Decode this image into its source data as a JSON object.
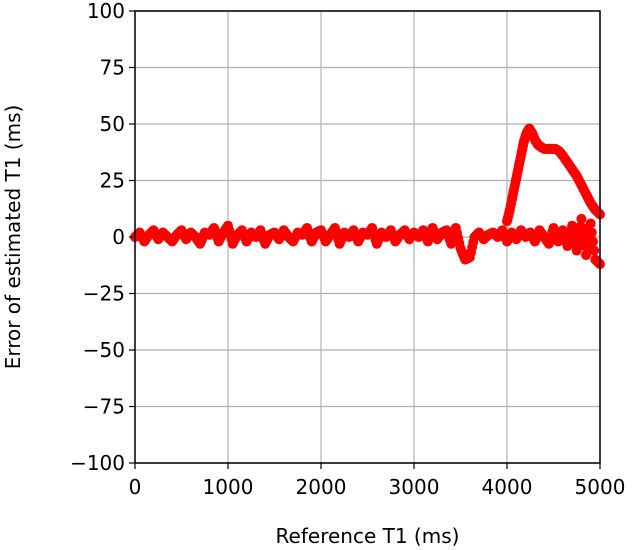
{
  "chart_data": {
    "type": "scatter",
    "title": "",
    "xlabel": "Reference T1 (ms)",
    "ylabel": "Error of estimated T1 (ms)",
    "xlim": [
      0,
      5000
    ],
    "ylim": [
      -100,
      100
    ],
    "xticks": [
      0,
      1000,
      2000,
      3000,
      4000,
      5000
    ],
    "xtick_labels": [
      "0",
      "1000",
      "2000",
      "3000",
      "4000",
      "5000"
    ],
    "yticks": [
      100,
      75,
      50,
      25,
      0,
      -25,
      -50,
      -75,
      -100
    ],
    "ytick_labels": [
      "100",
      "75",
      "50",
      "25",
      "0",
      "−25",
      "−50",
      "−75",
      "−100"
    ],
    "grid": true,
    "marker_color": "#ff0000",
    "series": [
      {
        "points": [
          [
            0,
            0
          ],
          [
            50,
            2
          ],
          [
            100,
            -2
          ],
          [
            150,
            1
          ],
          [
            200,
            3
          ],
          [
            250,
            -1
          ],
          [
            300,
            2
          ],
          [
            350,
            0
          ],
          [
            400,
            -2
          ],
          [
            450,
            1
          ],
          [
            500,
            3
          ],
          [
            550,
            -1
          ],
          [
            600,
            2
          ],
          [
            650,
            0
          ],
          [
            700,
            -3
          ],
          [
            750,
            2
          ],
          [
            800,
            1
          ],
          [
            850,
            4
          ],
          [
            900,
            -2
          ],
          [
            950,
            2
          ],
          [
            1000,
            5
          ],
          [
            1050,
            -3
          ],
          [
            1100,
            1
          ],
          [
            1150,
            3
          ],
          [
            1200,
            -2
          ],
          [
            1250,
            2
          ],
          [
            1300,
            0
          ],
          [
            1350,
            3
          ],
          [
            1400,
            -3
          ],
          [
            1450,
            1
          ],
          [
            1500,
            2
          ],
          [
            1550,
            -1
          ],
          [
            1600,
            3
          ],
          [
            1650,
            0
          ],
          [
            1700,
            -2
          ],
          [
            1750,
            2
          ],
          [
            1800,
            1
          ],
          [
            1850,
            4
          ],
          [
            1900,
            -2
          ],
          [
            1950,
            2
          ],
          [
            2000,
            3
          ],
          [
            2050,
            -2
          ],
          [
            2100,
            1
          ],
          [
            2150,
            4
          ],
          [
            2200,
            -3
          ],
          [
            2250,
            2
          ],
          [
            2300,
            0
          ],
          [
            2350,
            3
          ],
          [
            2400,
            -2
          ],
          [
            2450,
            2
          ],
          [
            2500,
            1
          ],
          [
            2550,
            4
          ],
          [
            2600,
            -3
          ],
          [
            2650,
            2
          ],
          [
            2700,
            0
          ],
          [
            2750,
            3
          ],
          [
            2800,
            -2
          ],
          [
            2850,
            1
          ],
          [
            2900,
            3
          ],
          [
            2950,
            -1
          ],
          [
            3000,
            2
          ],
          [
            3050,
            0
          ],
          [
            3100,
            3
          ],
          [
            3150,
            -2
          ],
          [
            3200,
            4
          ],
          [
            3250,
            -1
          ],
          [
            3300,
            2
          ],
          [
            3350,
            3
          ],
          [
            3400,
            -3
          ],
          [
            3450,
            4
          ],
          [
            3500,
            -5
          ],
          [
            3550,
            -10
          ],
          [
            3600,
            -9
          ],
          [
            3650,
            0
          ],
          [
            3700,
            2
          ],
          [
            3750,
            -1
          ],
          [
            3800,
            1
          ],
          [
            3850,
            2
          ],
          [
            3900,
            0
          ],
          [
            3950,
            3
          ],
          [
            4000,
            -2
          ],
          [
            4050,
            2
          ],
          [
            4100,
            -1
          ],
          [
            4150,
            3
          ],
          [
            4200,
            0
          ],
          [
            4250,
            2
          ],
          [
            4300,
            -2
          ],
          [
            4350,
            3
          ],
          [
            4400,
            0
          ],
          [
            4450,
            -3
          ],
          [
            4500,
            4
          ],
          [
            4550,
            -2
          ],
          [
            4600,
            3
          ],
          [
            4650,
            -4
          ],
          [
            4700,
            5
          ],
          [
            4750,
            -6
          ],
          [
            4800,
            8
          ],
          [
            4850,
            -8
          ],
          [
            4900,
            6
          ],
          [
            4950,
            -10
          ],
          [
            5000,
            -12
          ],
          [
            4000,
            7
          ],
          [
            4030,
            12
          ],
          [
            4060,
            18
          ],
          [
            4090,
            24
          ],
          [
            4120,
            30
          ],
          [
            4150,
            36
          ],
          [
            4180,
            42
          ],
          [
            4210,
            46
          ],
          [
            4240,
            48
          ],
          [
            4270,
            46
          ],
          [
            4300,
            43
          ],
          [
            4330,
            41
          ],
          [
            4360,
            40
          ],
          [
            4400,
            39
          ],
          [
            4440,
            39
          ],
          [
            4480,
            39
          ],
          [
            4520,
            39
          ],
          [
            4560,
            38
          ],
          [
            4600,
            36
          ],
          [
            4650,
            33
          ],
          [
            4700,
            30
          ],
          [
            4750,
            27
          ],
          [
            4800,
            23
          ],
          [
            4850,
            19
          ],
          [
            4900,
            15
          ],
          [
            4950,
            12
          ],
          [
            5000,
            10
          ]
        ]
      }
    ]
  }
}
